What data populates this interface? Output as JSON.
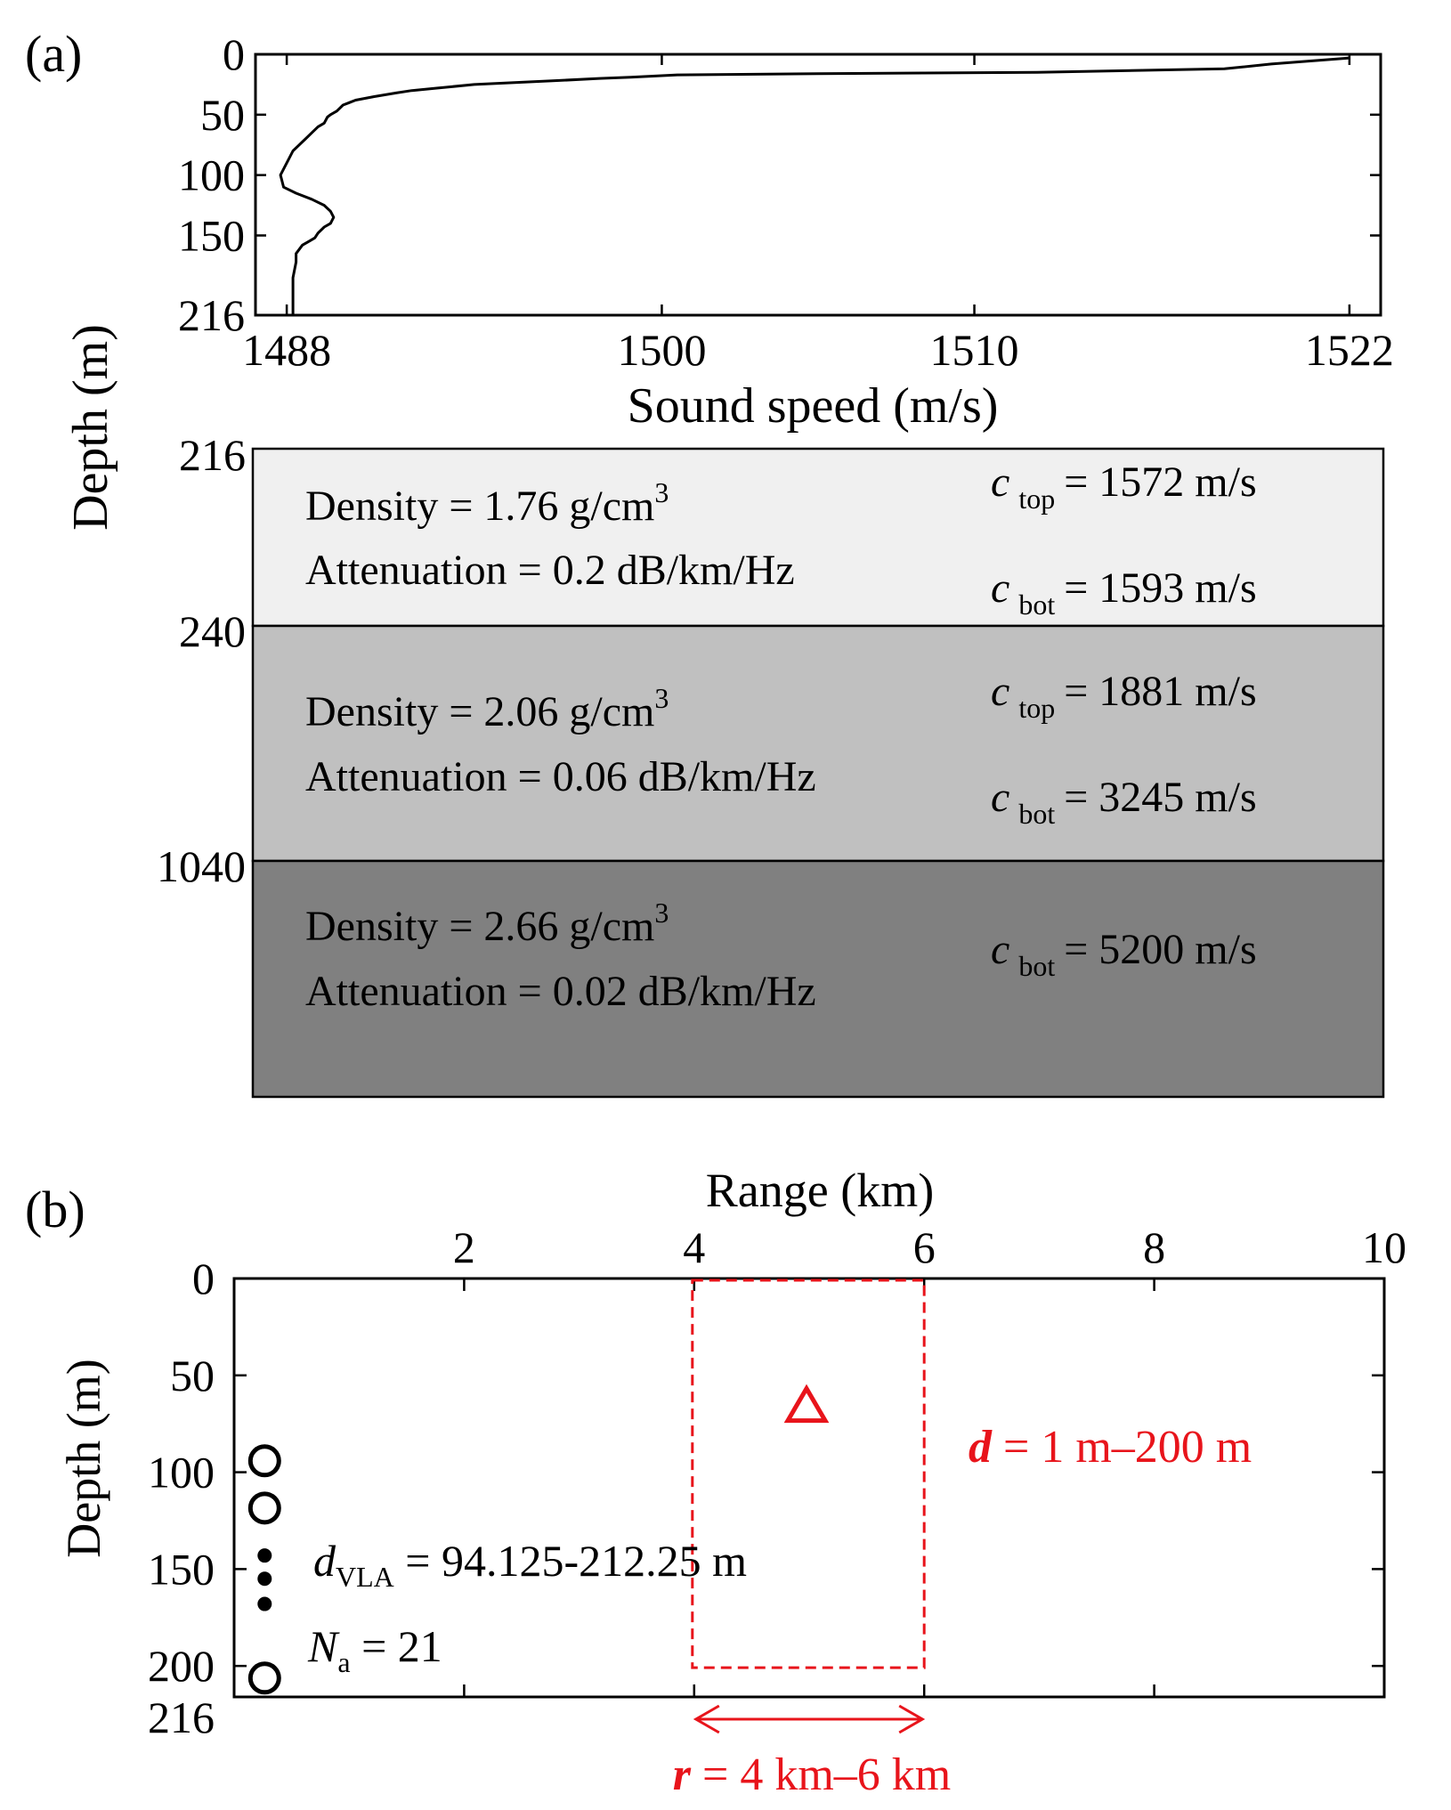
{
  "chart_data": [
    {
      "panel": "(a)",
      "type": "line",
      "xlabel": "Sound speed (m/s)",
      "ylabel": "Depth (m)",
      "xlim": [
        1487,
        1523
      ],
      "xticks": [
        1488,
        1500,
        1510,
        1522
      ],
      "ylim": [
        0,
        216
      ],
      "yticks": [
        0,
        50,
        100,
        150,
        216
      ],
      "y_inverted": true,
      "series": [
        {
          "name": "sound speed profile",
          "x": [
            1522.0,
            1519.5,
            1518.0,
            1512.0,
            1505.0,
            1500.5,
            1499.0,
            1498.0,
            1496.5,
            1494.0,
            1492.8,
            1492.0,
            1491.5,
            1490.8,
            1490.2,
            1490.0,
            1489.8,
            1489.6,
            1489.4,
            1489.3,
            1489.2,
            1489.0,
            1488.8,
            1488.6,
            1488.4,
            1488.2,
            1488.0,
            1487.8,
            1487.9,
            1488.3,
            1488.8,
            1489.2,
            1489.4,
            1489.5,
            1489.4,
            1489.2,
            1489.0,
            1488.9,
            1488.7,
            1488.5,
            1488.3,
            1488.3,
            1488.2,
            1488.2
          ],
          "y": [
            3,
            8,
            12,
            15,
            16,
            17,
            19,
            20,
            22,
            25,
            28,
            30,
            32,
            35,
            38,
            40,
            42,
            47,
            50,
            52,
            57,
            60,
            65,
            70,
            75,
            80,
            90,
            100,
            110,
            115,
            120,
            125,
            130,
            135,
            140,
            143,
            148,
            152,
            155,
            158,
            165,
            172,
            185,
            216
          ]
        }
      ],
      "layers": [
        {
          "top": 216,
          "bottom": 240,
          "color": "#f0f0f0",
          "density": "Density = 1.76 g/cm",
          "attenuation": "Attenuation = 0.2 dB/km/Hz",
          "c_top": "= 1572 m/s",
          "c_bot": "= 1593 m/s"
        },
        {
          "top": 240,
          "bottom": 1040,
          "color": "#c0c0c0",
          "density": "Density = 2.06 g/cm",
          "attenuation": "Attenuation = 0.06 dB/km/Hz",
          "c_top": "= 1881 m/s",
          "c_bot": "= 3245 m/s"
        },
        {
          "top": 1040,
          "bottom": null,
          "color": "#808080",
          "density": "Density = 2.66 g/cm",
          "attenuation": "Attenuation = 0.02 dB/km/Hz",
          "c_bot": "= 5200 m/s"
        }
      ],
      "layer_depth_labels": [
        "216",
        "240",
        "1040"
      ],
      "c_symbol": "c",
      "top_sub": "top",
      "bot_sub": "bot",
      "cubed": "3"
    },
    {
      "panel": "(b)",
      "type": "scatter",
      "xlabel": "Range (km)",
      "ylabel": "Depth (m)",
      "xlim": [
        0,
        10
      ],
      "xticks": [
        2,
        4,
        6,
        8,
        10
      ],
      "ylim": [
        0,
        216
      ],
      "yticks": [
        0,
        50,
        100,
        150,
        200,
        216
      ],
      "y_inverted": true,
      "array_elements": {
        "range": 0.25,
        "depths_circles": [
          94.125,
          118.5,
          206.25
        ],
        "depths_dots": [
          143,
          155,
          168
        ]
      },
      "source": {
        "range": 5.0,
        "depth": 66,
        "marker": "triangle"
      },
      "search_box": {
        "x": [
          4,
          6
        ],
        "y": [
          1,
          200
        ]
      },
      "range_arrow": [
        4,
        6
      ],
      "annotations": {
        "d_vla_sym": "d",
        "d_vla_sub": "VLA",
        "d_vla_value": " = 94.125-212.25 m",
        "na_sym": "N",
        "na_sub": "a",
        "na_value": " = 21",
        "d_sym": "d",
        "d_value": " = 1 m–200 m",
        "r_sym": "r",
        "r_value": " = 4 km–6 km"
      }
    }
  ],
  "colors": {
    "accent": "#e8141b",
    "axis": "#000000"
  }
}
